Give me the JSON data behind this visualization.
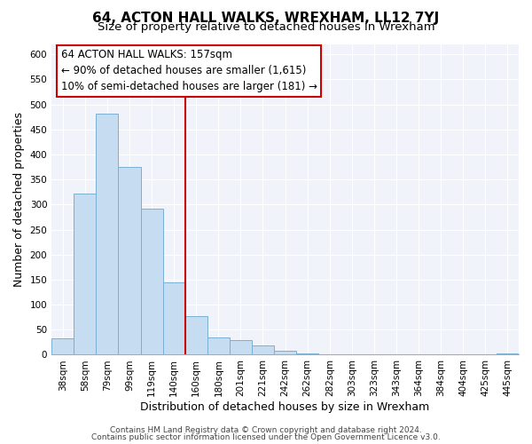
{
  "title": "64, ACTON HALL WALKS, WREXHAM, LL12 7YJ",
  "subtitle": "Size of property relative to detached houses in Wrexham",
  "xlabel": "Distribution of detached houses by size in Wrexham",
  "ylabel": "Number of detached properties",
  "bar_labels": [
    "38sqm",
    "58sqm",
    "79sqm",
    "99sqm",
    "119sqm",
    "140sqm",
    "160sqm",
    "180sqm",
    "201sqm",
    "221sqm",
    "242sqm",
    "262sqm",
    "282sqm",
    "303sqm",
    "323sqm",
    "343sqm",
    "364sqm",
    "384sqm",
    "404sqm",
    "425sqm",
    "445sqm"
  ],
  "bar_values": [
    32,
    322,
    482,
    376,
    291,
    145,
    77,
    34,
    30,
    18,
    8,
    2,
    1,
    0,
    0,
    0,
    0,
    0,
    0,
    0,
    3
  ],
  "bar_color": "#c6dcf0",
  "bar_edge_color": "#7ab0d4",
  "vline_x_index": 6,
  "vline_color": "#cc0000",
  "annotation_title": "64 ACTON HALL WALKS: 157sqm",
  "annotation_line1": "← 90% of detached houses are smaller (1,615)",
  "annotation_line2": "10% of semi-detached houses are larger (181) →",
  "box_edge_color": "#cc0000",
  "ylim": [
    0,
    620
  ],
  "yticks": [
    0,
    50,
    100,
    150,
    200,
    250,
    300,
    350,
    400,
    450,
    500,
    550,
    600
  ],
  "footer1": "Contains HM Land Registry data © Crown copyright and database right 2024.",
  "footer2": "Contains public sector information licensed under the Open Government Licence v3.0.",
  "title_fontsize": 11,
  "subtitle_fontsize": 9.5,
  "axis_label_fontsize": 9,
  "tick_fontsize": 7.5,
  "annotation_fontsize": 8.5,
  "footer_fontsize": 6.5,
  "bg_color": "#f0f4fa"
}
